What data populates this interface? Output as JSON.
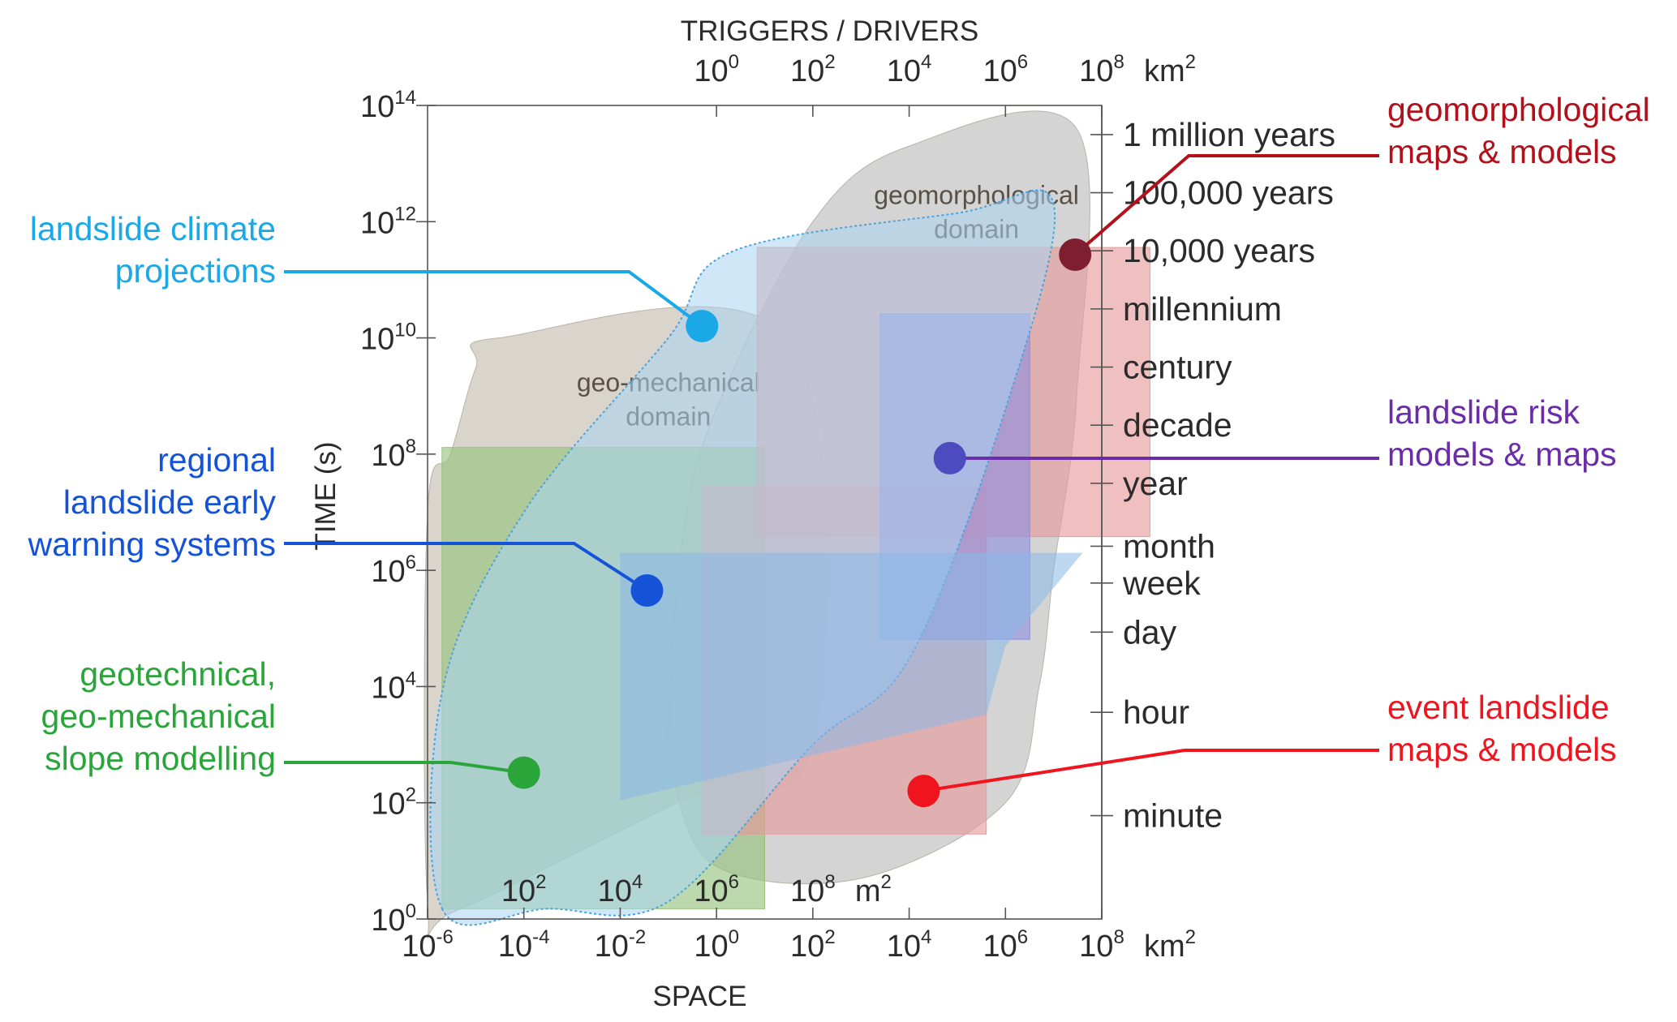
{
  "chart_data": {
    "type": "scatter",
    "x_scale": "log",
    "y_scale": "log",
    "xlabel": "SPACE",
    "ylabel": "TIME (s)",
    "top_axis_title": "TRIGGERS / DRIVERS",
    "x_unit": "km2",
    "x_inner_unit": "m2",
    "xlim": [
      1e-06,
      100000000.0
    ],
    "ylim": [
      1,
      100000000000000.0
    ],
    "x_ticks": [
      {
        "value": 1e-06,
        "base": "10",
        "exp": "-6"
      },
      {
        "value": 0.0001,
        "base": "10",
        "exp": "-4"
      },
      {
        "value": 0.01,
        "base": "10",
        "exp": "-2"
      },
      {
        "value": 1,
        "base": "10",
        "exp": "0"
      },
      {
        "value": 100.0,
        "base": "10",
        "exp": "2"
      },
      {
        "value": 10000.0,
        "base": "10",
        "exp": "4"
      },
      {
        "value": 1000000.0,
        "base": "10",
        "exp": "6"
      },
      {
        "value": 100000000.0,
        "base": "10",
        "exp": "8"
      }
    ],
    "x_top_ticks": [
      {
        "value": 1,
        "base": "10",
        "exp": "0"
      },
      {
        "value": 100.0,
        "base": "10",
        "exp": "2"
      },
      {
        "value": 10000.0,
        "base": "10",
        "exp": "4"
      },
      {
        "value": 1000000.0,
        "base": "10",
        "exp": "6"
      },
      {
        "value": 100000000.0,
        "base": "10",
        "exp": "8"
      }
    ],
    "x_inner_ticks": [
      {
        "value": 0.0001,
        "base": "10",
        "exp": "2"
      },
      {
        "value": 0.01,
        "base": "10",
        "exp": "4"
      },
      {
        "value": 1,
        "base": "10",
        "exp": "6"
      },
      {
        "value": 100.0,
        "base": "10",
        "exp": "8"
      }
    ],
    "y_ticks": [
      {
        "value": 1,
        "base": "10",
        "exp": "0"
      },
      {
        "value": 100.0,
        "base": "10",
        "exp": "2"
      },
      {
        "value": 10000.0,
        "base": "10",
        "exp": "4"
      },
      {
        "value": 1000000.0,
        "base": "10",
        "exp": "6"
      },
      {
        "value": 100000000.0,
        "base": "10",
        "exp": "8"
      },
      {
        "value": 10000000000.0,
        "base": "10",
        "exp": "10"
      },
      {
        "value": 1000000000000.0,
        "base": "10",
        "exp": "12"
      },
      {
        "value": 100000000000000.0,
        "base": "10",
        "exp": "14"
      }
    ],
    "time_scale": [
      {
        "label": "1 million years",
        "seconds": 31500000000000.0
      },
      {
        "label": "100,000 years",
        "seconds": 3150000000000.0
      },
      {
        "label": "10,000 years",
        "seconds": 315000000000.0
      },
      {
        "label": "millennium",
        "seconds": 31500000000.0
      },
      {
        "label": "century",
        "seconds": 3150000000.0
      },
      {
        "label": "decade",
        "seconds": 315000000.0
      },
      {
        "label": "year",
        "seconds": 31500000.0
      },
      {
        "label": "month",
        "seconds": 2600000.0
      },
      {
        "label": "week",
        "seconds": 605000.0
      },
      {
        "label": "day",
        "seconds": 86400.0
      },
      {
        "label": "hour",
        "seconds": 3600
      },
      {
        "label": "minute",
        "seconds": 60
      }
    ],
    "domains": [
      {
        "label_lines": [
          "geo-mechanical",
          "domain"
        ],
        "label_at": [
          0.1,
          1200000000.0
        ],
        "fill": "#d2ccc3",
        "polygon": [
          [
            4e-06,
            1.4
          ],
          [
            0.2,
            110.0
          ],
          [
            100.0,
            1000.0
          ],
          [
            30.0,
            10000000000.0
          ],
          [
            3e-05,
            10000000000.0
          ],
          [
            1e-05,
            3000000000.0
          ],
          [
            3e-06,
            100000000.0
          ],
          [
            1e-06,
            10000000.0
          ],
          [
            1e-06,
            2
          ]
        ]
      },
      {
        "label_lines": [
          "geomorphological",
          "domain"
        ],
        "label_at": [
          250000.0,
          2000000000000.0
        ],
        "fill": "#cdcdcd",
        "polygon": [
          [
            0.1,
            2000.0
          ],
          [
            0.2,
            4000000.0
          ],
          [
            1.0,
            600000000.0
          ],
          [
            100.0,
            1000000000000.0
          ],
          [
            10000.0,
            20000000000000.0
          ],
          [
            30000000.0,
            40000000000000.0
          ],
          [
            30000000.0,
            1000000000.0
          ],
          [
            10000000.0,
            1000000.0
          ],
          [
            5000000.0,
            10000.0
          ],
          [
            1000000.0,
            100.0
          ],
          [
            1000.0,
            5
          ],
          [
            1.0,
            8
          ],
          [
            0.12,
            300.0
          ]
        ]
      }
    ],
    "boxes": [
      {
        "x": [
          2e-06,
          10.0
        ],
        "y": [
          1.5,
          130000000.0
        ],
        "fill": "#93c17a"
      },
      {
        "x": [
          0.5,
          400000.0
        ],
        "y": [
          29.0,
          27000000.0
        ],
        "fill": "#e79a9a"
      },
      {
        "x": [
          7.0,
          1000000000.0
        ],
        "y": [
          3800000.0,
          360000000000.0
        ],
        "fill": "#e79a9a"
      },
      {
        "x": [
          2500.0,
          3200000.0
        ],
        "y": [
          65000.0,
          26000000000.0
        ],
        "fill": "#8f8ee0"
      }
    ],
    "polygons": [
      {
        "fill": "#a9d4f2",
        "stroke": "#4aa3dd",
        "points": [
          [
            2e-06,
            1.5
          ],
          [
            0.0003,
            1.5
          ],
          [
            0.1,
            2.0
          ],
          [
            100.0,
            1000.0
          ],
          [
            10000.0,
            30000.0
          ],
          [
            1000000.0,
            600000000.0
          ],
          [
            10000000.0,
            2000000000000.0
          ],
          [
            100000.0,
            1400000000000.0
          ],
          [
            2.0,
            300000000000.0
          ],
          [
            0.1,
            10000000000.0
          ],
          [
            0.0001,
            10000000.0
          ],
          [
            2e-06,
            8000.0
          ]
        ]
      },
      {
        "fill": "#88b8e8",
        "stroke": "none",
        "points": [
          [
            0.01,
            110.0
          ],
          [
            400000.0,
            3300.0
          ],
          [
            1000000.0,
            50000.0
          ],
          [
            40000000.0,
            2000000.0
          ],
          [
            0.01,
            2000000.0
          ]
        ]
      }
    ],
    "series": [
      {
        "name": "landslide climate projections",
        "label_lines": [
          "landslide climate",
          "projections"
        ],
        "color": "#1aa8e6",
        "x": 0.5,
        "y": 16000000000.0
      },
      {
        "name": "geomorphological maps & models",
        "label_lines": [
          "geomorphological",
          "maps & models"
        ],
        "color": "#b2101a",
        "point_color": "#7d1f2f",
        "x": 28000000.0,
        "y": 270000000000.0
      },
      {
        "name": "regional landslide early warning systems",
        "label_lines": [
          "regional",
          "landslide early",
          "warning systems"
        ],
        "color": "#1453d8",
        "x": 0.036,
        "y": 450000.0
      },
      {
        "name": "landslide risk models & maps",
        "label_lines": [
          "landslide risk",
          "models & maps"
        ],
        "color": "#6a2ca8",
        "point_color": "#4c4bbf",
        "x": 70000.0,
        "y": 85000000.0
      },
      {
        "name": "geotechnical, geo-mechanical slope modelling",
        "label_lines": [
          "geotechnical,",
          "geo-mechanical",
          "slope modelling"
        ],
        "color": "#2aa53a",
        "x": 0.0001,
        "y": 330.0
      },
      {
        "name": "event landslide maps & models",
        "label_lines": [
          "event landslide",
          "maps & models"
        ],
        "color": "#f0141e",
        "x": 20000.0,
        "y": 160.0
      }
    ]
  }
}
